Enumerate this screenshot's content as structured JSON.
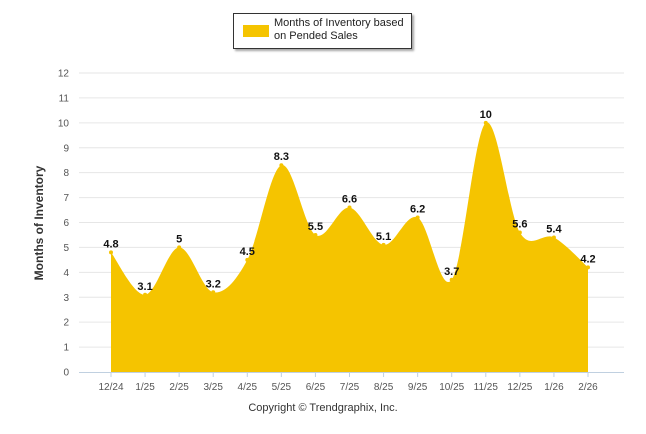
{
  "chart_data": {
    "type": "area",
    "title": "",
    "xlabel": "",
    "ylabel": "Months of Inventory",
    "ylim": [
      0,
      12
    ],
    "yticks": [
      0,
      1,
      2,
      3,
      4,
      5,
      6,
      7,
      8,
      9,
      10,
      11,
      12
    ],
    "categories": [
      "12/24",
      "1/25",
      "2/25",
      "3/25",
      "4/25",
      "5/25",
      "6/25",
      "7/25",
      "8/25",
      "9/25",
      "10/25",
      "11/25",
      "12/25",
      "1/26",
      "2/26"
    ],
    "series": [
      {
        "name": "Months of Inventory based on Pended Sales",
        "values": [
          4.8,
          3.1,
          5,
          3.2,
          4.5,
          8.3,
          5.5,
          6.6,
          5.1,
          6.2,
          3.7,
          10,
          5.6,
          5.4,
          4.2
        ],
        "labels": [
          "4.8",
          "3.1",
          "5",
          "3.2",
          "4.5",
          "8.3",
          "5.5",
          "6.6",
          "5.1",
          "6.2",
          "3.7",
          "10",
          "5.6",
          "5.4",
          "4.2"
        ],
        "color": "#f5c400"
      }
    ],
    "grid": true,
    "legend": {
      "position": "top-center",
      "label": "Months of Inventory based\non Pended Sales"
    }
  },
  "credit": "Copyright © Trendgraphix, Inc.",
  "colors": {
    "area": "#f5c400",
    "grid": "#e6e6e6",
    "axis": "#c0d0e0"
  }
}
